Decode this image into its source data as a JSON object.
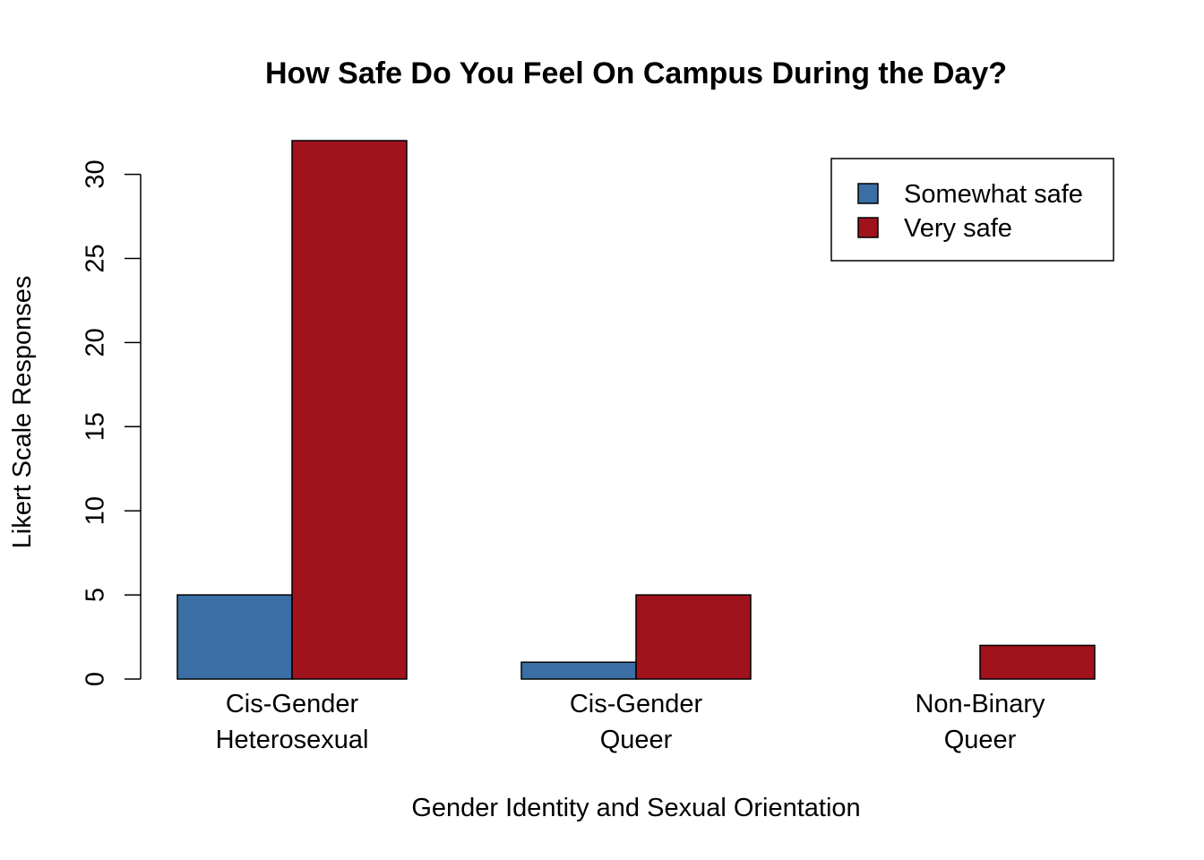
{
  "chart_data": {
    "type": "bar",
    "title": "How Safe Do You Feel On Campus During the Day?",
    "xlabel": "Gender Identity and Sexual Orientation",
    "ylabel": "Likert Scale Responses",
    "categories": [
      [
        "Cis-Gender",
        "Heterosexual"
      ],
      [
        "Cis-Gender",
        "Queer"
      ],
      [
        "Non-Binary",
        "Queer"
      ]
    ],
    "series": [
      {
        "name": "Somewhat safe",
        "color": "#3A6EA5",
        "values": [
          5,
          1,
          0
        ]
      },
      {
        "name": "Very safe",
        "color": "#A0131C",
        "values": [
          32,
          5,
          2
        ]
      }
    ],
    "yticks": [
      0,
      5,
      10,
      15,
      20,
      25,
      30
    ],
    "ylim": [
      0,
      32
    ],
    "grid": false,
    "legend_position": "top-right",
    "bar_mode": "grouped"
  }
}
